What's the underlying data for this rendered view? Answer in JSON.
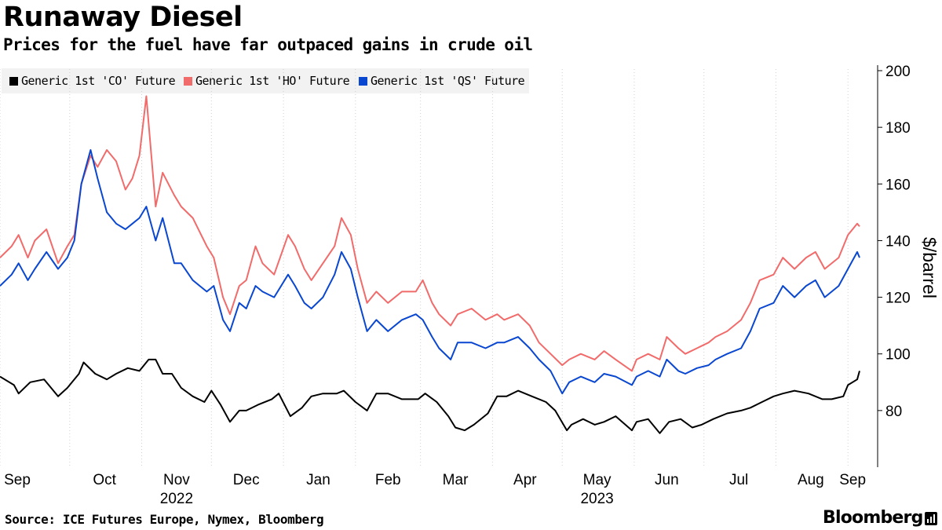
{
  "title": "Runaway Diesel",
  "subtitle": "Prices for the fuel have far outpaced gains in crude oil",
  "source": "Source: ICE Futures Europe, Nymex, Bloomberg",
  "brand": "Bloomberg",
  "chart_data": {
    "type": "line",
    "ylabel": "$/barrel",
    "xlabel": "",
    "ylim": [
      60,
      200
    ],
    "y_ticks": [
      80,
      100,
      120,
      140,
      160,
      180,
      200
    ],
    "x_ticks": [
      "Sep",
      "Oct",
      "Nov",
      "Dec",
      "Jan",
      "Feb",
      "Mar",
      "Apr",
      "May",
      "Jun",
      "Jul",
      "Aug",
      "Sep"
    ],
    "x_years": [
      {
        "label": "2022",
        "under": "Nov"
      },
      {
        "label": "2023",
        "under": "May"
      }
    ],
    "x_range": [
      "2022-09-01",
      "2023-09-06"
    ],
    "grid": "vertical dotted at month starts",
    "legend_position": "top-left",
    "series": [
      {
        "name": "Generic 1st 'CO' Future",
        "color": "#000000",
        "points": [
          [
            "2022-09-01",
            92
          ],
          [
            "2022-09-07",
            89
          ],
          [
            "2022-09-09",
            86
          ],
          [
            "2022-09-14",
            90
          ],
          [
            "2022-09-20",
            91
          ],
          [
            "2022-09-26",
            85
          ],
          [
            "2022-09-30",
            88
          ],
          [
            "2022-10-05",
            93
          ],
          [
            "2022-10-07",
            97
          ],
          [
            "2022-10-12",
            93
          ],
          [
            "2022-10-17",
            91
          ],
          [
            "2022-10-21",
            93
          ],
          [
            "2022-10-26",
            95
          ],
          [
            "2022-10-31",
            94
          ],
          [
            "2022-11-04",
            98
          ],
          [
            "2022-11-07",
            98
          ],
          [
            "2022-11-10",
            93
          ],
          [
            "2022-11-14",
            93
          ],
          [
            "2022-11-18",
            88
          ],
          [
            "2022-11-23",
            85
          ],
          [
            "2022-11-28",
            83
          ],
          [
            "2022-12-01",
            87
          ],
          [
            "2022-12-05",
            82
          ],
          [
            "2022-12-09",
            76
          ],
          [
            "2022-12-13",
            80
          ],
          [
            "2022-12-16",
            80
          ],
          [
            "2022-12-21",
            82
          ],
          [
            "2022-12-27",
            84
          ],
          [
            "2022-12-30",
            86
          ],
          [
            "2023-01-04",
            78
          ],
          [
            "2023-01-09",
            81
          ],
          [
            "2023-01-13",
            85
          ],
          [
            "2023-01-18",
            86
          ],
          [
            "2023-01-24",
            86
          ],
          [
            "2023-01-27",
            87
          ],
          [
            "2023-02-01",
            83
          ],
          [
            "2023-02-06",
            80
          ],
          [
            "2023-02-10",
            86
          ],
          [
            "2023-02-15",
            86
          ],
          [
            "2023-02-21",
            84
          ],
          [
            "2023-02-28",
            84
          ],
          [
            "2023-03-03",
            86
          ],
          [
            "2023-03-08",
            83
          ],
          [
            "2023-03-13",
            78
          ],
          [
            "2023-03-16",
            74
          ],
          [
            "2023-03-20",
            73
          ],
          [
            "2023-03-24",
            75
          ],
          [
            "2023-03-30",
            79
          ],
          [
            "2023-04-03",
            85
          ],
          [
            "2023-04-07",
            85
          ],
          [
            "2023-04-12",
            87
          ],
          [
            "2023-04-18",
            85
          ],
          [
            "2023-04-24",
            83
          ],
          [
            "2023-04-28",
            80
          ],
          [
            "2023-05-03",
            73
          ],
          [
            "2023-05-05",
            75
          ],
          [
            "2023-05-10",
            77
          ],
          [
            "2023-05-15",
            75
          ],
          [
            "2023-05-19",
            76
          ],
          [
            "2023-05-24",
            78
          ],
          [
            "2023-05-31",
            73
          ],
          [
            "2023-06-02",
            76
          ],
          [
            "2023-06-07",
            77
          ],
          [
            "2023-06-12",
            72
          ],
          [
            "2023-06-16",
            76
          ],
          [
            "2023-06-21",
            77
          ],
          [
            "2023-06-26",
            74
          ],
          [
            "2023-06-30",
            75
          ],
          [
            "2023-07-05",
            77
          ],
          [
            "2023-07-11",
            79
          ],
          [
            "2023-07-17",
            80
          ],
          [
            "2023-07-21",
            81
          ],
          [
            "2023-07-26",
            83
          ],
          [
            "2023-07-31",
            85
          ],
          [
            "2023-08-04",
            86
          ],
          [
            "2023-08-09",
            87
          ],
          [
            "2023-08-15",
            86
          ],
          [
            "2023-08-21",
            84
          ],
          [
            "2023-08-25",
            84
          ],
          [
            "2023-08-30",
            85
          ],
          [
            "2023-09-01",
            89
          ],
          [
            "2023-09-05",
            91
          ],
          [
            "2023-09-06",
            94
          ]
        ]
      },
      {
        "name": "Generic 1st 'HO' Future",
        "color": "#f26b6b",
        "points": [
          [
            "2022-09-01",
            134
          ],
          [
            "2022-09-06",
            138
          ],
          [
            "2022-09-09",
            142
          ],
          [
            "2022-09-13",
            134
          ],
          [
            "2022-09-16",
            140
          ],
          [
            "2022-09-21",
            144
          ],
          [
            "2022-09-26",
            132
          ],
          [
            "2022-09-30",
            138
          ],
          [
            "2022-10-03",
            142
          ],
          [
            "2022-10-06",
            160
          ],
          [
            "2022-10-10",
            170
          ],
          [
            "2022-10-13",
            166
          ],
          [
            "2022-10-17",
            172
          ],
          [
            "2022-10-21",
            168
          ],
          [
            "2022-10-25",
            158
          ],
          [
            "2022-10-28",
            162
          ],
          [
            "2022-10-31",
            170
          ],
          [
            "2022-11-03",
            191
          ],
          [
            "2022-11-07",
            152
          ],
          [
            "2022-11-10",
            164
          ],
          [
            "2022-11-15",
            156
          ],
          [
            "2022-11-18",
            152
          ],
          [
            "2022-11-23",
            148
          ],
          [
            "2022-11-29",
            138
          ],
          [
            "2022-12-02",
            134
          ],
          [
            "2022-12-06",
            120
          ],
          [
            "2022-12-09",
            114
          ],
          [
            "2022-12-13",
            124
          ],
          [
            "2022-12-16",
            126
          ],
          [
            "2022-12-20",
            138
          ],
          [
            "2022-12-23",
            132
          ],
          [
            "2022-12-28",
            128
          ],
          [
            "2023-01-03",
            142
          ],
          [
            "2023-01-06",
            138
          ],
          [
            "2023-01-10",
            130
          ],
          [
            "2023-01-13",
            126
          ],
          [
            "2023-01-18",
            132
          ],
          [
            "2023-01-23",
            138
          ],
          [
            "2023-01-26",
            148
          ],
          [
            "2023-01-30",
            142
          ],
          [
            "2023-02-02",
            130
          ],
          [
            "2023-02-06",
            118
          ],
          [
            "2023-02-10",
            122
          ],
          [
            "2023-02-15",
            118
          ],
          [
            "2023-02-21",
            122
          ],
          [
            "2023-02-27",
            122
          ],
          [
            "2023-03-02",
            126
          ],
          [
            "2023-03-06",
            118
          ],
          [
            "2023-03-09",
            114
          ],
          [
            "2023-03-14",
            110
          ],
          [
            "2023-03-17",
            114
          ],
          [
            "2023-03-23",
            116
          ],
          [
            "2023-03-29",
            112
          ],
          [
            "2023-04-03",
            114
          ],
          [
            "2023-04-06",
            112
          ],
          [
            "2023-04-12",
            114
          ],
          [
            "2023-04-17",
            110
          ],
          [
            "2023-04-21",
            104
          ],
          [
            "2023-04-26",
            100
          ],
          [
            "2023-05-01",
            96
          ],
          [
            "2023-05-04",
            98
          ],
          [
            "2023-05-09",
            100
          ],
          [
            "2023-05-15",
            98
          ],
          [
            "2023-05-19",
            101
          ],
          [
            "2023-05-24",
            98
          ],
          [
            "2023-05-31",
            94
          ],
          [
            "2023-06-02",
            98
          ],
          [
            "2023-06-07",
            100
          ],
          [
            "2023-06-12",
            98
          ],
          [
            "2023-06-15",
            106
          ],
          [
            "2023-06-20",
            102
          ],
          [
            "2023-06-23",
            100
          ],
          [
            "2023-06-28",
            102
          ],
          [
            "2023-07-03",
            104
          ],
          [
            "2023-07-06",
            106
          ],
          [
            "2023-07-11",
            108
          ],
          [
            "2023-07-17",
            112
          ],
          [
            "2023-07-21",
            118
          ],
          [
            "2023-07-25",
            126
          ],
          [
            "2023-07-31",
            128
          ],
          [
            "2023-08-04",
            134
          ],
          [
            "2023-08-09",
            130
          ],
          [
            "2023-08-14",
            134
          ],
          [
            "2023-08-18",
            136
          ],
          [
            "2023-08-22",
            130
          ],
          [
            "2023-08-28",
            134
          ],
          [
            "2023-09-01",
            142
          ],
          [
            "2023-09-05",
            146
          ],
          [
            "2023-09-06",
            145
          ]
        ]
      },
      {
        "name": "Generic 1st 'QS' Future",
        "color": "#0a47d0",
        "points": [
          [
            "2022-09-01",
            124
          ],
          [
            "2022-09-06",
            128
          ],
          [
            "2022-09-09",
            132
          ],
          [
            "2022-09-13",
            126
          ],
          [
            "2022-09-16",
            130
          ],
          [
            "2022-09-21",
            136
          ],
          [
            "2022-09-26",
            130
          ],
          [
            "2022-09-30",
            134
          ],
          [
            "2022-10-03",
            140
          ],
          [
            "2022-10-06",
            160
          ],
          [
            "2022-10-10",
            172
          ],
          [
            "2022-10-13",
            162
          ],
          [
            "2022-10-17",
            150
          ],
          [
            "2022-10-21",
            146
          ],
          [
            "2022-10-25",
            144
          ],
          [
            "2022-10-28",
            146
          ],
          [
            "2022-10-31",
            148
          ],
          [
            "2022-11-03",
            152
          ],
          [
            "2022-11-07",
            140
          ],
          [
            "2022-11-10",
            148
          ],
          [
            "2022-11-15",
            132
          ],
          [
            "2022-11-18",
            132
          ],
          [
            "2022-11-23",
            126
          ],
          [
            "2022-11-29",
            122
          ],
          [
            "2022-12-02",
            124
          ],
          [
            "2022-12-06",
            112
          ],
          [
            "2022-12-09",
            108
          ],
          [
            "2022-12-13",
            118
          ],
          [
            "2022-12-16",
            116
          ],
          [
            "2022-12-20",
            124
          ],
          [
            "2022-12-23",
            122
          ],
          [
            "2022-12-28",
            120
          ],
          [
            "2023-01-03",
            128
          ],
          [
            "2023-01-06",
            124
          ],
          [
            "2023-01-10",
            118
          ],
          [
            "2023-01-13",
            116
          ],
          [
            "2023-01-18",
            120
          ],
          [
            "2023-01-23",
            128
          ],
          [
            "2023-01-26",
            136
          ],
          [
            "2023-01-30",
            130
          ],
          [
            "2023-02-02",
            120
          ],
          [
            "2023-02-06",
            108
          ],
          [
            "2023-02-10",
            112
          ],
          [
            "2023-02-15",
            108
          ],
          [
            "2023-02-21",
            112
          ],
          [
            "2023-02-27",
            114
          ],
          [
            "2023-03-02",
            112
          ],
          [
            "2023-03-06",
            106
          ],
          [
            "2023-03-09",
            102
          ],
          [
            "2023-03-14",
            98
          ],
          [
            "2023-03-17",
            104
          ],
          [
            "2023-03-23",
            104
          ],
          [
            "2023-03-29",
            102
          ],
          [
            "2023-04-03",
            104
          ],
          [
            "2023-04-06",
            104
          ],
          [
            "2023-04-12",
            106
          ],
          [
            "2023-04-17",
            102
          ],
          [
            "2023-04-21",
            98
          ],
          [
            "2023-04-26",
            94
          ],
          [
            "2023-05-01",
            86
          ],
          [
            "2023-05-04",
            90
          ],
          [
            "2023-05-09",
            92
          ],
          [
            "2023-05-15",
            90
          ],
          [
            "2023-05-19",
            93
          ],
          [
            "2023-05-24",
            92
          ],
          [
            "2023-05-31",
            89
          ],
          [
            "2023-06-02",
            92
          ],
          [
            "2023-06-07",
            94
          ],
          [
            "2023-06-12",
            92
          ],
          [
            "2023-06-15",
            98
          ],
          [
            "2023-06-20",
            94
          ],
          [
            "2023-06-23",
            93
          ],
          [
            "2023-06-28",
            95
          ],
          [
            "2023-07-03",
            96
          ],
          [
            "2023-07-06",
            98
          ],
          [
            "2023-07-11",
            100
          ],
          [
            "2023-07-17",
            102
          ],
          [
            "2023-07-21",
            108
          ],
          [
            "2023-07-25",
            116
          ],
          [
            "2023-07-31",
            118
          ],
          [
            "2023-08-04",
            124
          ],
          [
            "2023-08-09",
            120
          ],
          [
            "2023-08-14",
            124
          ],
          [
            "2023-08-18",
            126
          ],
          [
            "2023-08-22",
            120
          ],
          [
            "2023-08-28",
            124
          ],
          [
            "2023-09-01",
            130
          ],
          [
            "2023-09-05",
            136
          ],
          [
            "2023-09-06",
            134
          ]
        ]
      }
    ]
  }
}
